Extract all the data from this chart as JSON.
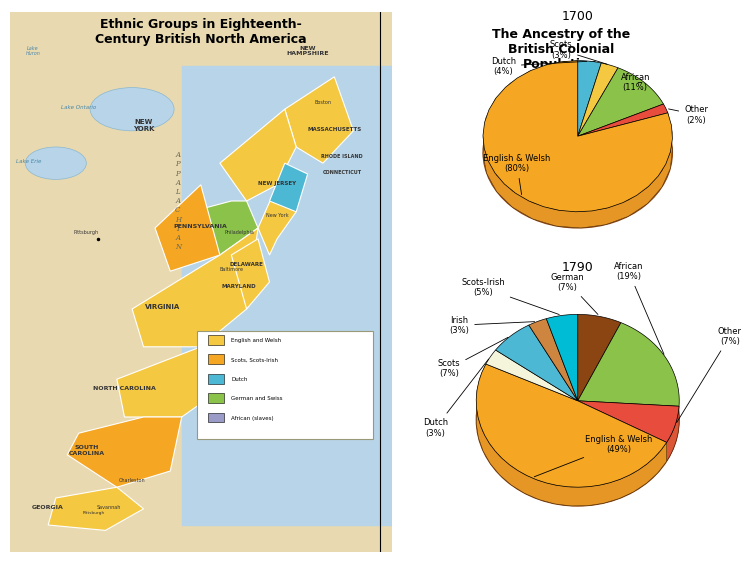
{
  "title_left": "Ethnic Groups in Eighteenth-\nCentury British North America",
  "title_right": "The Ancestry of the\nBritish Colonial\nPopulation",
  "bg_color": "#e8dfc8",
  "pie1_year": "1700",
  "pie1_labels": [
    "Dutch\n(4%)",
    "Scots\n(3%)",
    "African\n(11%)",
    "Other\n(2%)",
    "English & Welsh\n(80%)"
  ],
  "pie1_sizes": [
    4,
    3,
    11,
    2,
    80
  ],
  "pie1_colors": [
    "#4db8d4",
    "#f5c842",
    "#8bc34a",
    "#e74c3c",
    "#f5a623"
  ],
  "pie2_year": "1790",
  "pie2_labels": [
    "German\n(7%)",
    "African\n(19%)",
    "Other\n(7%)",
    "English & Welsh\n(49%)",
    "Dutch\n(3%)",
    "Scots\n(7%)",
    "Irish\n(3%)",
    "Scots-Irish\n(5%)"
  ],
  "pie2_sizes": [
    7,
    19,
    7,
    49,
    3,
    7,
    3,
    5
  ],
  "pie2_colors": [
    "#8b4513",
    "#8bc34a",
    "#e74c3c",
    "#f5a623",
    "#f5f5dc",
    "#4db8d4",
    "#cd853f",
    "#00bcd4"
  ],
  "map_legend_items": [
    {
      "label": "English and Welsh",
      "color": "#f5c842"
    },
    {
      "label": "Scots, Scots-Irish",
      "color": "#f5a623"
    },
    {
      "label": "Dutch",
      "color": "#4db8d4"
    },
    {
      "label": "German and Swiss",
      "color": "#8bc34a"
    },
    {
      "label": "African (slaves)",
      "color": "#9b9bc8"
    }
  ]
}
